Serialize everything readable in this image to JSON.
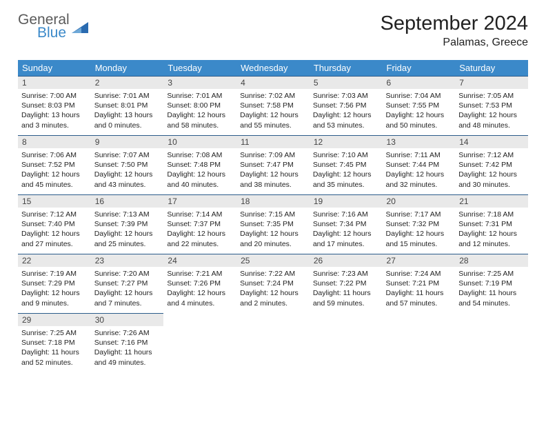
{
  "logo": {
    "text1": "General",
    "text2": "Blue",
    "triangle_color": "#2a6bb0"
  },
  "title": "September 2024",
  "location": "Palamas, Greece",
  "colors": {
    "header_bg": "#3b89c9",
    "header_text": "#ffffff",
    "daynum_bg": "#e9e9e9",
    "row_divider": "#2a5b8a",
    "body_text": "#222222"
  },
  "weekdays": [
    "Sunday",
    "Monday",
    "Tuesday",
    "Wednesday",
    "Thursday",
    "Friday",
    "Saturday"
  ],
  "days": [
    {
      "n": 1,
      "sunrise": "7:00 AM",
      "sunset": "8:03 PM",
      "day_h": 13,
      "day_m": 3
    },
    {
      "n": 2,
      "sunrise": "7:01 AM",
      "sunset": "8:01 PM",
      "day_h": 13,
      "day_m": 0
    },
    {
      "n": 3,
      "sunrise": "7:01 AM",
      "sunset": "8:00 PM",
      "day_h": 12,
      "day_m": 58
    },
    {
      "n": 4,
      "sunrise": "7:02 AM",
      "sunset": "7:58 PM",
      "day_h": 12,
      "day_m": 55
    },
    {
      "n": 5,
      "sunrise": "7:03 AM",
      "sunset": "7:56 PM",
      "day_h": 12,
      "day_m": 53
    },
    {
      "n": 6,
      "sunrise": "7:04 AM",
      "sunset": "7:55 PM",
      "day_h": 12,
      "day_m": 50
    },
    {
      "n": 7,
      "sunrise": "7:05 AM",
      "sunset": "7:53 PM",
      "day_h": 12,
      "day_m": 48
    },
    {
      "n": 8,
      "sunrise": "7:06 AM",
      "sunset": "7:52 PM",
      "day_h": 12,
      "day_m": 45
    },
    {
      "n": 9,
      "sunrise": "7:07 AM",
      "sunset": "7:50 PM",
      "day_h": 12,
      "day_m": 43
    },
    {
      "n": 10,
      "sunrise": "7:08 AM",
      "sunset": "7:48 PM",
      "day_h": 12,
      "day_m": 40
    },
    {
      "n": 11,
      "sunrise": "7:09 AM",
      "sunset": "7:47 PM",
      "day_h": 12,
      "day_m": 38
    },
    {
      "n": 12,
      "sunrise": "7:10 AM",
      "sunset": "7:45 PM",
      "day_h": 12,
      "day_m": 35
    },
    {
      "n": 13,
      "sunrise": "7:11 AM",
      "sunset": "7:44 PM",
      "day_h": 12,
      "day_m": 32
    },
    {
      "n": 14,
      "sunrise": "7:12 AM",
      "sunset": "7:42 PM",
      "day_h": 12,
      "day_m": 30
    },
    {
      "n": 15,
      "sunrise": "7:12 AM",
      "sunset": "7:40 PM",
      "day_h": 12,
      "day_m": 27
    },
    {
      "n": 16,
      "sunrise": "7:13 AM",
      "sunset": "7:39 PM",
      "day_h": 12,
      "day_m": 25
    },
    {
      "n": 17,
      "sunrise": "7:14 AM",
      "sunset": "7:37 PM",
      "day_h": 12,
      "day_m": 22
    },
    {
      "n": 18,
      "sunrise": "7:15 AM",
      "sunset": "7:35 PM",
      "day_h": 12,
      "day_m": 20
    },
    {
      "n": 19,
      "sunrise": "7:16 AM",
      "sunset": "7:34 PM",
      "day_h": 12,
      "day_m": 17
    },
    {
      "n": 20,
      "sunrise": "7:17 AM",
      "sunset": "7:32 PM",
      "day_h": 12,
      "day_m": 15
    },
    {
      "n": 21,
      "sunrise": "7:18 AM",
      "sunset": "7:31 PM",
      "day_h": 12,
      "day_m": 12
    },
    {
      "n": 22,
      "sunrise": "7:19 AM",
      "sunset": "7:29 PM",
      "day_h": 12,
      "day_m": 9
    },
    {
      "n": 23,
      "sunrise": "7:20 AM",
      "sunset": "7:27 PM",
      "day_h": 12,
      "day_m": 7
    },
    {
      "n": 24,
      "sunrise": "7:21 AM",
      "sunset": "7:26 PM",
      "day_h": 12,
      "day_m": 4
    },
    {
      "n": 25,
      "sunrise": "7:22 AM",
      "sunset": "7:24 PM",
      "day_h": 12,
      "day_m": 2
    },
    {
      "n": 26,
      "sunrise": "7:23 AM",
      "sunset": "7:22 PM",
      "day_h": 11,
      "day_m": 59
    },
    {
      "n": 27,
      "sunrise": "7:24 AM",
      "sunset": "7:21 PM",
      "day_h": 11,
      "day_m": 57
    },
    {
      "n": 28,
      "sunrise": "7:25 AM",
      "sunset": "7:19 PM",
      "day_h": 11,
      "day_m": 54
    },
    {
      "n": 29,
      "sunrise": "7:25 AM",
      "sunset": "7:18 PM",
      "day_h": 11,
      "day_m": 52
    },
    {
      "n": 30,
      "sunrise": "7:26 AM",
      "sunset": "7:16 PM",
      "day_h": 11,
      "day_m": 49
    }
  ],
  "labels": {
    "sunrise": "Sunrise:",
    "sunset": "Sunset:",
    "daylight": "Daylight:",
    "hours_word": "hours",
    "and_word": "and",
    "minutes_word": "minutes."
  },
  "start_weekday": 0
}
